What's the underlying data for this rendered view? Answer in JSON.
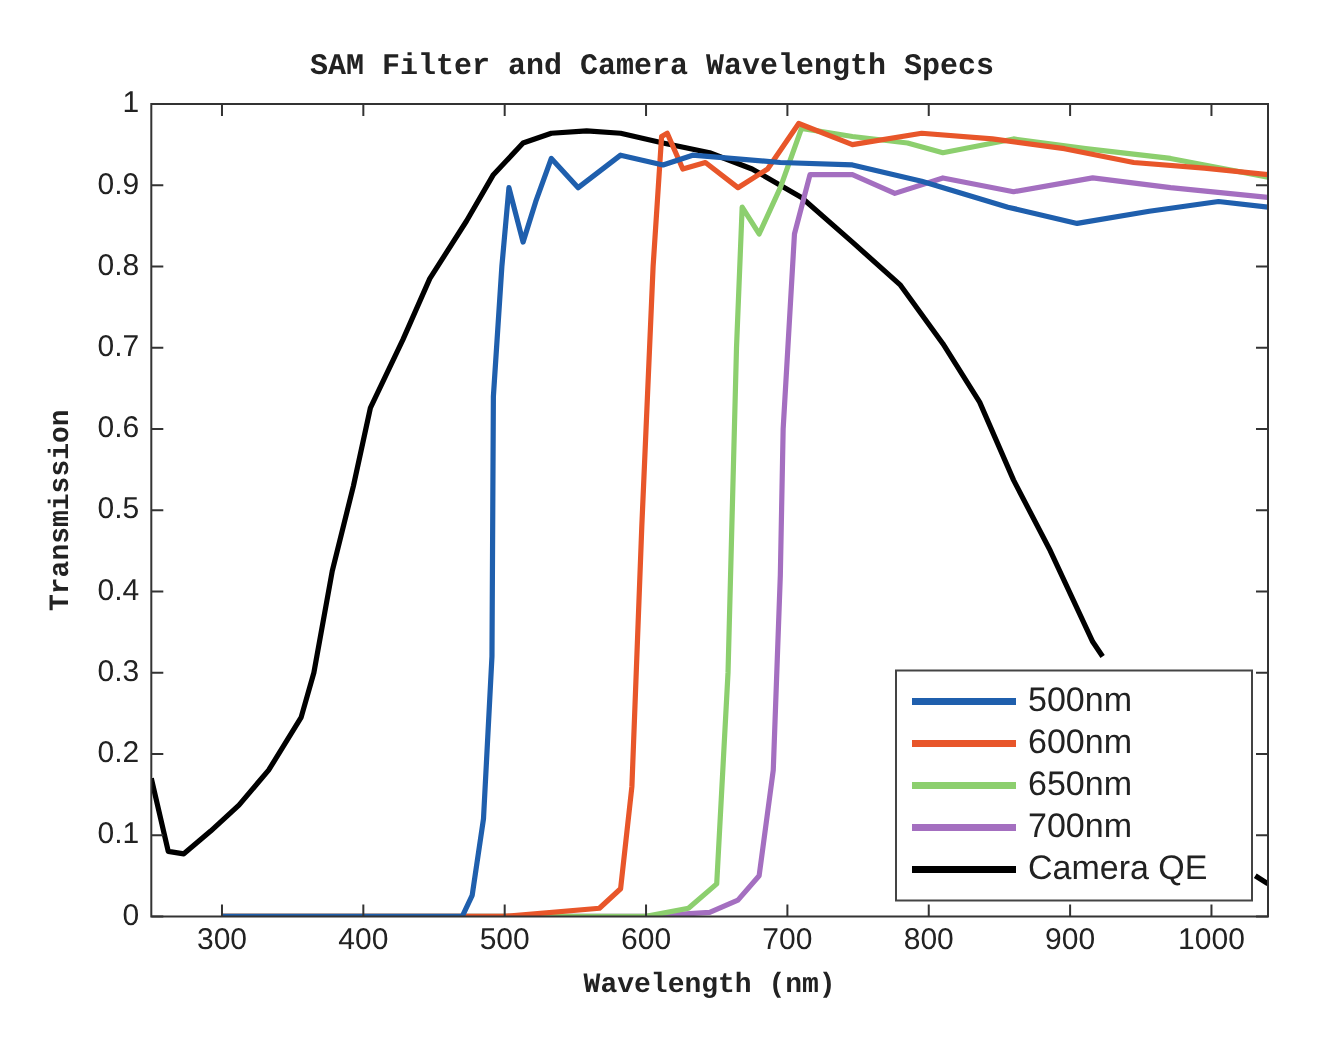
{
  "chart_data": {
    "type": "line",
    "title": "SAM Filter and Camera Wavelength Specs",
    "xlabel": "Wavelength (nm)",
    "ylabel": "Transmission",
    "xlim": [
      250,
      1040
    ],
    "xticks": [
      300,
      400,
      500,
      600,
      700,
      800,
      900,
      1000
    ],
    "ylim": [
      0,
      1
    ],
    "yticks": [
      0,
      0.1,
      0.2,
      0.3,
      0.4,
      0.5,
      0.6,
      0.7,
      0.8,
      0.9,
      1
    ],
    "grid": false,
    "legend": "bottom right",
    "marker": "none",
    "line_style": "solid",
    "series": [
      {
        "name": "500nm",
        "color": "#1f5fad",
        "x": [
          300,
          400,
          470,
          477,
          485,
          491,
          492,
          498,
          503,
          513,
          522,
          533,
          552,
          582,
          612,
          633,
          695,
          746,
          795,
          856,
          905,
          956,
          1005,
          1040
        ],
        "values": [
          0,
          0,
          0,
          0.026,
          0.12,
          0.32,
          0.64,
          0.8,
          0.897,
          0.83,
          0.88,
          0.933,
          0.897,
          0.937,
          0.925,
          0.937,
          0.928,
          0.925,
          0.905,
          0.873,
          0.853,
          0.868,
          0.88,
          0.873
        ]
      },
      {
        "name": "600nm",
        "color": "#e8562a",
        "x": [
          300,
          400,
          500,
          567,
          582,
          590,
          597,
          605,
          611,
          615,
          626,
          642,
          665,
          686,
          708,
          746,
          795,
          845,
          896,
          945,
          995,
          1040
        ],
        "values": [
          0,
          0,
          0,
          0.01,
          0.034,
          0.16,
          0.48,
          0.8,
          0.96,
          0.964,
          0.92,
          0.928,
          0.897,
          0.92,
          0.976,
          0.95,
          0.964,
          0.957,
          0.945,
          0.928,
          0.921,
          0.913
        ]
      },
      {
        "name": "650nm",
        "color": "#8ccf6e",
        "x": [
          300,
          400,
          500,
          600,
          630,
          650,
          658,
          664,
          668,
          680,
          695,
          710,
          746,
          785,
          810,
          860,
          911,
          971,
          1040
        ],
        "values": [
          0,
          0,
          0,
          0,
          0.01,
          0.04,
          0.3,
          0.7,
          0.873,
          0.84,
          0.897,
          0.97,
          0.96,
          0.952,
          0.94,
          0.957,
          0.945,
          0.933,
          0.91
        ]
      },
      {
        "name": "700nm",
        "color": "#a46fc0",
        "x": [
          300,
          400,
          500,
          600,
          645,
          665,
          680,
          690,
          695,
          697,
          705,
          716,
          746,
          776,
          810,
          860,
          916,
          971,
          1040
        ],
        "values": [
          0,
          0,
          0,
          0,
          0.005,
          0.02,
          0.05,
          0.18,
          0.42,
          0.6,
          0.84,
          0.913,
          0.913,
          0.89,
          0.909,
          0.892,
          0.909,
          0.897,
          0.885
        ]
      },
      {
        "name": "Camera QE",
        "color": "#000000",
        "x": [
          250,
          262,
          273,
          292,
          312,
          333,
          356,
          365,
          378,
          393,
          405,
          428,
          447,
          473,
          492,
          513,
          533,
          558,
          582,
          612,
          645,
          675,
          710,
          746,
          780,
          810,
          836,
          860,
          886,
          916,
          923,
          980,
          1031,
          1040
        ],
        "values": [
          0.17,
          0.08,
          0.077,
          0.105,
          0.137,
          0.18,
          0.245,
          0.3,
          0.425,
          0.53,
          0.626,
          0.71,
          0.785,
          0.856,
          0.913,
          0.952,
          0.964,
          0.967,
          0.964,
          0.952,
          0.94,
          0.92,
          0.885,
          0.83,
          0.777,
          0.705,
          0.633,
          0.537,
          0.45,
          0.338,
          0.32,
          null,
          0.05,
          0.04
        ]
      }
    ]
  }
}
